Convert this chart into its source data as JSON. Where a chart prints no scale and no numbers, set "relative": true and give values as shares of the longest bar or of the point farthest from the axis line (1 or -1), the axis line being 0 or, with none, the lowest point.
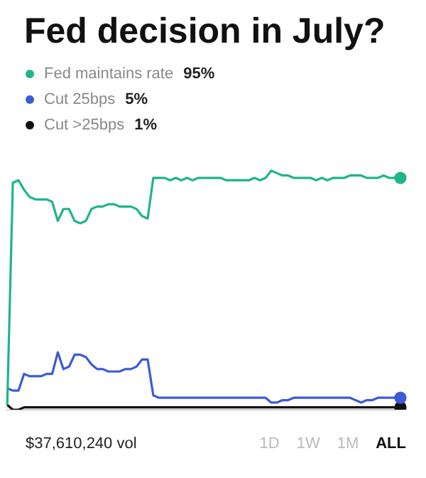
{
  "chart_data": {
    "type": "line",
    "title": "Fed decision in July?",
    "relative": true,
    "categories": [
      null,
      null,
      null,
      null,
      null,
      null,
      null,
      null,
      null,
      null,
      null,
      null,
      null,
      null,
      null,
      null,
      null,
      null,
      null,
      null,
      null,
      null,
      null,
      null,
      null,
      null,
      null,
      null,
      null,
      null,
      null,
      null,
      null,
      null,
      null,
      null,
      null,
      null,
      null,
      null,
      null,
      null,
      null,
      null,
      null,
      null,
      null,
      null,
      null,
      null,
      null,
      null,
      null,
      null,
      null,
      null,
      null,
      null,
      null,
      null,
      null,
      null,
      null,
      null,
      null,
      null,
      null,
      null,
      null,
      null,
      null
    ],
    "series": [
      {
        "name": "Fed maintains rate",
        "color": "#1fb58a",
        "values": [
          0.02,
          0.95,
          0.96,
          0.92,
          0.89,
          0.88,
          0.88,
          0.88,
          0.87,
          0.79,
          0.84,
          0.84,
          0.79,
          0.78,
          0.79,
          0.84,
          0.85,
          0.85,
          0.86,
          0.86,
          0.85,
          0.85,
          0.85,
          0.84,
          0.81,
          0.8,
          0.97,
          0.97,
          0.97,
          0.96,
          0.97,
          0.96,
          0.97,
          0.96,
          0.97,
          0.97,
          0.97,
          0.97,
          0.97,
          0.96,
          0.96,
          0.96,
          0.96,
          0.96,
          0.97,
          0.96,
          0.97,
          1,
          0.99,
          0.98,
          0.98,
          0.97,
          0.97,
          0.97,
          0.97,
          0.96,
          0.97,
          0.96,
          0.97,
          0.97,
          0.97,
          0.98,
          0.98,
          0.98,
          0.97,
          0.97,
          0.97,
          0.98,
          0.97,
          0.97,
          0.97
        ]
      },
      {
        "name": "Cut 25bps",
        "color": "#3b5bd9",
        "values": [
          0.09,
          0.08,
          0.08,
          0.15,
          0.14,
          0.14,
          0.14,
          0.15,
          0.15,
          0.24,
          0.17,
          0.18,
          0.23,
          0.23,
          0.22,
          0.19,
          0.17,
          0.17,
          0.16,
          0.16,
          0.16,
          0.17,
          0.17,
          0.18,
          0.21,
          0.21,
          0.06,
          0.05,
          0.05,
          0.05,
          0.05,
          0.05,
          0.05,
          0.05,
          0.05,
          0.05,
          0.05,
          0.05,
          0.05,
          0.05,
          0.05,
          0.05,
          0.05,
          0.05,
          0.05,
          0.05,
          0.05,
          0.03,
          0.03,
          0.04,
          0.04,
          0.05,
          0.05,
          0.05,
          0.05,
          0.05,
          0.05,
          0.05,
          0.05,
          0.05,
          0.05,
          0.05,
          0.04,
          0.03,
          0.04,
          0.04,
          0.05,
          0.05,
          0.05,
          0.05,
          0.05
        ]
      },
      {
        "name": "Cut >25bps",
        "color": "#111111",
        "values": [
          0.02,
          0,
          0,
          0.01,
          0.01,
          0.01,
          0.01,
          0.01,
          0.01,
          0.01,
          0.01,
          0.01,
          0.01,
          0.01,
          0.01,
          0.01,
          0.01,
          0.01,
          0.01,
          0.01,
          0.01,
          0.01,
          0.01,
          0.01,
          0.01,
          0.01,
          0.01,
          0.01,
          0.01,
          0.01,
          0.01,
          0.01,
          0.01,
          0.01,
          0.01,
          0.01,
          0.01,
          0.01,
          0.01,
          0.01,
          0.01,
          0.01,
          0.01,
          0.01,
          0.01,
          0.01,
          0.01,
          0.01,
          0.01,
          0.01,
          0.01,
          0.01,
          0.01,
          0.01,
          0.01,
          0.01,
          0.01,
          0.01,
          0.01,
          0.01,
          0.01,
          0.01,
          0.01,
          0.01,
          0.01,
          0.01,
          0.01,
          0.01,
          0.01,
          0.01,
          0.01
        ]
      }
    ],
    "legend": "top left",
    "line_style": "solid",
    "annotations": [
      "95%",
      "5%",
      "1%",
      "$37,610,240 vol",
      "1D",
      "1W",
      "1M",
      "ALL"
    ]
  }
}
